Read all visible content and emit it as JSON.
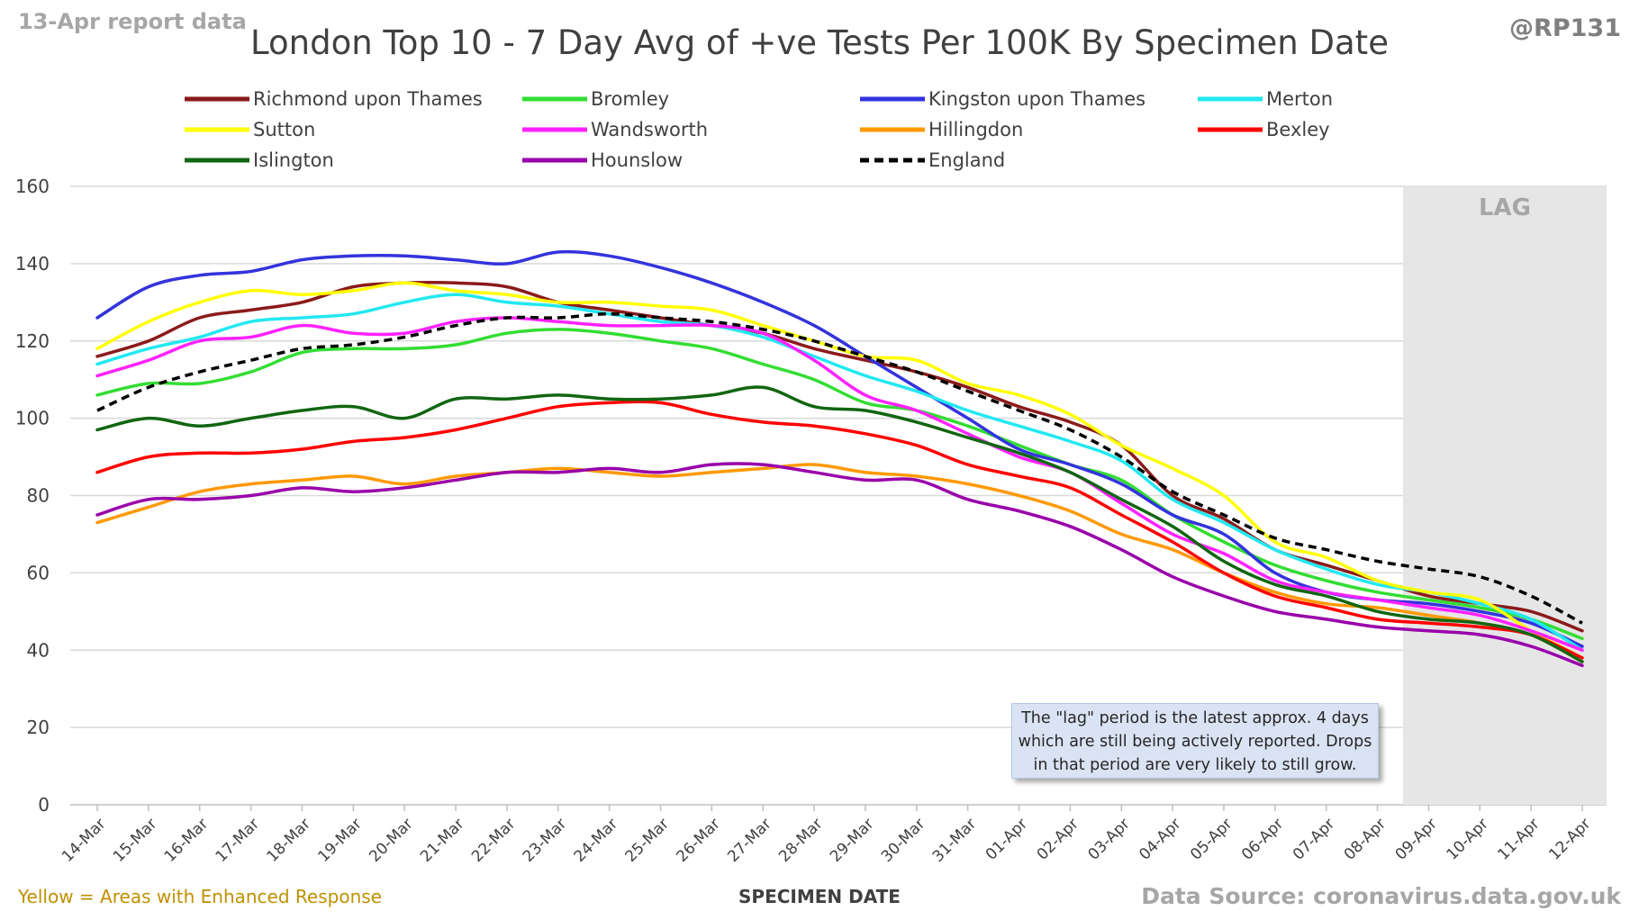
{
  "header": {
    "report_label": "13-Apr report data",
    "handle": "@RP131"
  },
  "footer": {
    "enhanced_note": "Yellow = Areas with Enhanced Response",
    "source_note": "Data Source: coronavirus.data.gov.uk"
  },
  "lag_note": {
    "lines": [
      "The \"lag\" period is the latest approx. 4 days",
      "which are still being actively reported.  Drops",
      "in that period are very likely to still grow."
    ]
  },
  "chart_data": {
    "type": "line",
    "title": "London Top 10 - 7 Day Avg of +ve Tests Per 100K By Specimen Date",
    "xlabel": "SPECIMEN DATE",
    "ylabel": "",
    "ylim": [
      0,
      160
    ],
    "yticks": [
      0,
      20,
      40,
      60,
      80,
      100,
      120,
      140,
      160
    ],
    "grid": true,
    "legend_position": "top",
    "lag_band": {
      "label": "LAG",
      "from": "09-Apr",
      "to": "12-Apr"
    },
    "categories": [
      "14-Mar",
      "15-Mar",
      "16-Mar",
      "17-Mar",
      "18-Mar",
      "19-Mar",
      "20-Mar",
      "21-Mar",
      "22-Mar",
      "23-Mar",
      "24-Mar",
      "25-Mar",
      "26-Mar",
      "27-Mar",
      "28-Mar",
      "29-Mar",
      "30-Mar",
      "31-Mar",
      "01-Apr",
      "02-Apr",
      "03-Apr",
      "04-Apr",
      "05-Apr",
      "06-Apr",
      "07-Apr",
      "08-Apr",
      "09-Apr",
      "10-Apr",
      "11-Apr",
      "12-Apr"
    ],
    "series": [
      {
        "name": "Richmond upon Thames",
        "color": "#8b1a1a",
        "dash": false,
        "values": [
          116,
          120,
          126,
          128,
          130,
          134,
          135,
          135,
          134,
          130,
          128,
          126,
          124,
          122,
          118,
          115,
          112,
          108,
          103,
          99,
          93,
          80,
          74,
          66,
          62,
          58,
          54,
          52,
          50,
          45
        ]
      },
      {
        "name": "Bromley",
        "color": "#33dd33",
        "dash": false,
        "values": [
          106,
          109,
          109,
          112,
          117,
          118,
          118,
          119,
          122,
          123,
          122,
          120,
          118,
          114,
          110,
          104,
          102,
          98,
          93,
          88,
          84,
          75,
          68,
          62,
          58,
          55,
          53,
          51,
          48,
          43
        ]
      },
      {
        "name": "Kingston upon Thames",
        "color": "#3333dd",
        "dash": false,
        "values": [
          126,
          134,
          137,
          138,
          141,
          142,
          142,
          141,
          140,
          143,
          142,
          139,
          135,
          130,
          124,
          116,
          108,
          100,
          92,
          88,
          83,
          75,
          70,
          60,
          55,
          53,
          52,
          50,
          47,
          41
        ]
      },
      {
        "name": "Merton",
        "color": "#22e8f0",
        "dash": false,
        "values": [
          114,
          118,
          121,
          125,
          126,
          127,
          130,
          132,
          130,
          129,
          127,
          125,
          124,
          121,
          116,
          111,
          107,
          102,
          98,
          94,
          89,
          79,
          73,
          66,
          61,
          57,
          55,
          52,
          48,
          40
        ]
      },
      {
        "name": "Sutton",
        "color": "#ffff00",
        "dash": false,
        "values": [
          118,
          125,
          130,
          133,
          132,
          133,
          135,
          133,
          132,
          130,
          130,
          129,
          128,
          124,
          120,
          116,
          115,
          109,
          106,
          101,
          93,
          87,
          80,
          68,
          64,
          58,
          55,
          53,
          45,
          38
        ]
      },
      {
        "name": "Wandsworth",
        "color": "#ff22ff",
        "dash": false,
        "values": [
          111,
          115,
          120,
          121,
          124,
          122,
          122,
          125,
          126,
          125,
          124,
          124,
          124,
          122,
          115,
          106,
          102,
          96,
          90,
          86,
          78,
          70,
          65,
          58,
          55,
          53,
          51,
          49,
          45,
          40
        ]
      },
      {
        "name": "Hillingdon",
        "color": "#ff9900",
        "dash": false,
        "values": [
          73,
          77,
          81,
          83,
          84,
          85,
          83,
          85,
          86,
          87,
          86,
          85,
          86,
          87,
          88,
          86,
          85,
          83,
          80,
          76,
          70,
          66,
          60,
          55,
          52,
          51,
          49,
          47,
          44,
          37
        ]
      },
      {
        "name": "Bexley",
        "color": "#ff0000",
        "dash": false,
        "values": [
          86,
          90,
          91,
          91,
          92,
          94,
          95,
          97,
          100,
          103,
          104,
          104,
          101,
          99,
          98,
          96,
          93,
          88,
          85,
          82,
          75,
          68,
          60,
          54,
          51,
          48,
          47,
          46,
          44,
          38
        ]
      },
      {
        "name": "Islington",
        "color": "#116611",
        "dash": false,
        "values": [
          97,
          100,
          98,
          100,
          102,
          103,
          100,
          105,
          105,
          106,
          105,
          105,
          106,
          108,
          103,
          102,
          99,
          95,
          91,
          86,
          79,
          72,
          63,
          57,
          54,
          50,
          48,
          47,
          44,
          37
        ]
      },
      {
        "name": "Hounslow",
        "color": "#9900aa",
        "dash": false,
        "values": [
          75,
          79,
          79,
          80,
          82,
          81,
          82,
          84,
          86,
          86,
          87,
          86,
          88,
          88,
          86,
          84,
          84,
          79,
          76,
          72,
          66,
          59,
          54,
          50,
          48,
          46,
          45,
          44,
          41,
          36
        ]
      },
      {
        "name": "England",
        "color": "#000000",
        "dash": true,
        "values": [
          102,
          108,
          112,
          115,
          118,
          119,
          121,
          124,
          126,
          126,
          127,
          126,
          125,
          123,
          120,
          116,
          112,
          107,
          102,
          97,
          90,
          81,
          75,
          69,
          66,
          63,
          61,
          59,
          54,
          47
        ]
      }
    ]
  }
}
